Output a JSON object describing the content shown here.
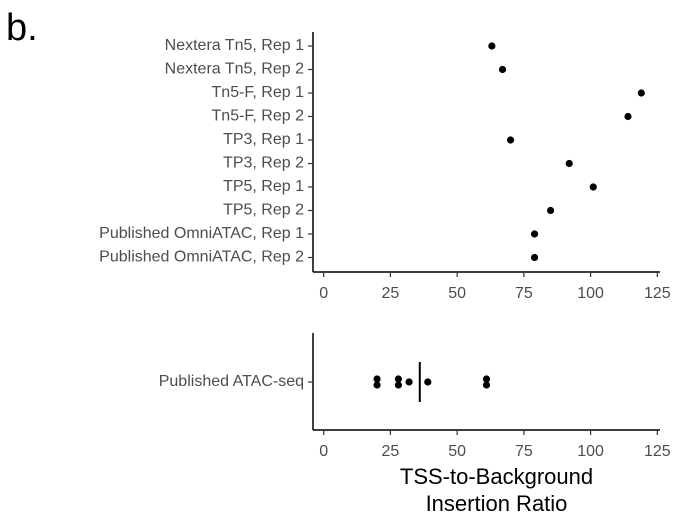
{
  "panel_label": "b.",
  "chart_data": [
    {
      "type": "dot",
      "orientation": "horizontal",
      "categories": [
        "Nextera Tn5, Rep 1",
        "Nextera Tn5, Rep 2",
        "Tn5-F, Rep 1",
        "Tn5-F, Rep 2",
        "TP3, Rep 1",
        "TP3, Rep 2",
        "TP5, Rep 1",
        "TP5, Rep 2",
        "Published OmniATAC, Rep 1",
        "Published OmniATAC, Rep 2"
      ],
      "values": [
        63,
        67,
        119,
        114,
        70,
        92,
        101,
        85,
        79,
        79
      ],
      "color": "#000000",
      "xlim": [
        -4,
        126
      ],
      "xticks": [
        0,
        25,
        50,
        75,
        100,
        125
      ]
    },
    {
      "type": "strip",
      "orientation": "horizontal",
      "categories": [
        "Published ATAC-seq"
      ],
      "values": [
        20,
        20,
        28,
        28,
        32,
        39,
        61,
        61
      ],
      "center_line": 36,
      "color": "#000000",
      "xlim": [
        -4,
        126
      ],
      "xticks": [
        0,
        25,
        50,
        75,
        100,
        125
      ],
      "x_label": [
        "TSS-to-Background",
        "Insertion Ratio"
      ]
    }
  ]
}
